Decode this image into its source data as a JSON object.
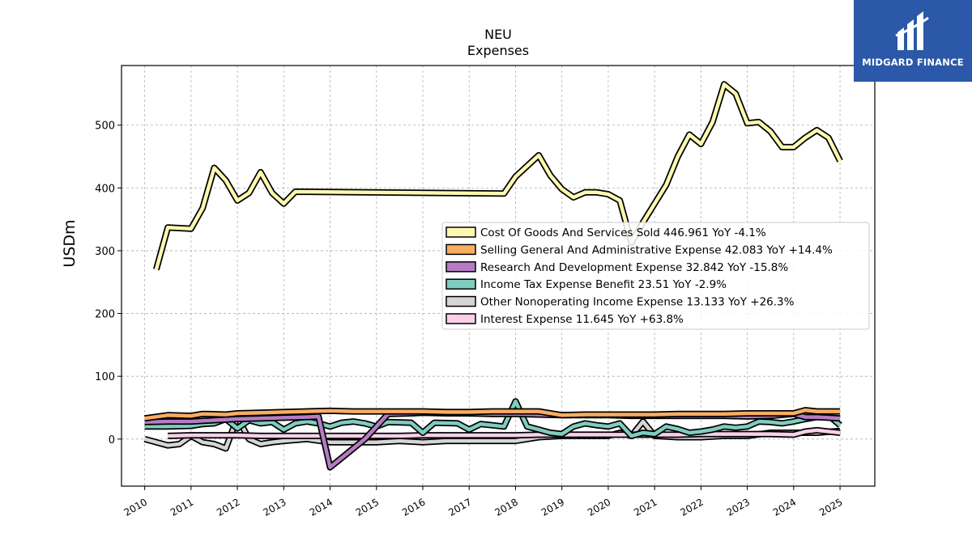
{
  "brand": {
    "name": "MIDGARD FINANCE",
    "background": "#2b58a8"
  },
  "chart_data": {
    "type": "line",
    "title": "NEU",
    "subtitle": "Expenses",
    "xlabel": "",
    "ylabel": "USDm",
    "xlim": [
      2009.5,
      2025.75
    ],
    "ylim": [
      -75,
      595
    ],
    "y_ticks": [
      0,
      100,
      200,
      300,
      400,
      500
    ],
    "x_ticks": [
      "2010",
      "2011",
      "2012",
      "2013",
      "2014",
      "2015",
      "2016",
      "2017",
      "2018",
      "2019",
      "2020",
      "2021",
      "2022",
      "2023",
      "2024",
      "2025"
    ],
    "grid": true,
    "legend_position": "center-right",
    "series": [
      {
        "name": "Cost Of Goods And Services Sold",
        "legend_label": "Cost Of Goods And Services Sold  446.961 YoY -4.1%",
        "color": "#fdf8b0",
        "x": [
          2010.25,
          2010.5,
          2011.0,
          2011.25,
          2011.5,
          2011.75,
          2012.0,
          2012.25,
          2012.5,
          2012.75,
          2013.0,
          2013.25,
          2017.75,
          2018.0,
          2018.25,
          2018.5,
          2018.75,
          2019.0,
          2019.25,
          2019.5,
          2019.75,
          2020.0,
          2020.25,
          2020.5,
          2020.75,
          2021.0,
          2021.25,
          2021.5,
          2021.75,
          2022.0,
          2022.25,
          2022.5,
          2022.75,
          2023.0,
          2023.25,
          2023.5,
          2023.75,
          2024.0,
          2024.25,
          2024.5,
          2024.75,
          2025.0
        ],
        "y": [
          270,
          337,
          335,
          368,
          432,
          412,
          380,
          392,
          425,
          392,
          375,
          394,
          391,
          418,
          435,
          452,
          420,
          398,
          385,
          393,
          393,
          390,
          380,
          313,
          345,
          375,
          405,
          450,
          485,
          470,
          505,
          565,
          550,
          503,
          505,
          490,
          465,
          465,
          480,
          492,
          480,
          443
        ]
      },
      {
        "name": "Selling General And Administrative Expense",
        "legend_label": "Selling General And Administrative Expense  42.083 YoY +14.4%",
        "color": "#f9ad60",
        "x": [
          2010.0,
          2010.5,
          2011.0,
          2011.25,
          2011.75,
          2012.0,
          2012.5,
          2013.0,
          2013.5,
          2014.0,
          2014.5,
          2015.0,
          2015.5,
          2016.0,
          2016.5,
          2017.0,
          2017.5,
          2018.0,
          2018.5,
          2019.0,
          2019.5,
          2020.0,
          2020.5,
          2021.0,
          2021.5,
          2022.0,
          2022.5,
          2023.0,
          2023.5,
          2024.0,
          2024.25,
          2024.5,
          2025.0
        ],
        "y": [
          33,
          38,
          37,
          40,
          39,
          41,
          42,
          43,
          44,
          45,
          44,
          44,
          44,
          44,
          43,
          43,
          44,
          44,
          44,
          38,
          39,
          39,
          39,
          39,
          40,
          40,
          40,
          41,
          41,
          41,
          46,
          44,
          44
        ]
      },
      {
        "name": "Research And Development Expense",
        "legend_label": "Research And Development Expense  32.842 YoY -15.8%",
        "color": "#b57cc4",
        "x": [
          2010.0,
          2010.5,
          2011.0,
          2011.5,
          2012.0,
          2012.5,
          2013.0,
          2013.5,
          2013.75,
          2014.0,
          2014.25,
          2014.5,
          2014.75,
          2015.0,
          2015.25,
          2015.75,
          2016.0,
          2016.5,
          2017.0,
          2017.5,
          2018.0,
          2018.5,
          2019.0,
          2019.5,
          2020.0,
          2020.5,
          2021.0,
          2021.5,
          2022.0,
          2022.5,
          2023.0,
          2023.5,
          2024.0,
          2024.25,
          2024.5,
          2025.0
        ],
        "y": [
          27,
          28,
          28,
          30,
          32,
          33,
          34,
          35,
          36,
          -45,
          -30,
          -15,
          0,
          20,
          40,
          41,
          42,
          41,
          41,
          40,
          40,
          39,
          38,
          38,
          38,
          37,
          37,
          37,
          37,
          37,
          36,
          37,
          40,
          35,
          35,
          33
        ]
      },
      {
        "name": "Income Tax Expense Benefit",
        "legend_label": "Income Tax Expense Benefit  23.51 YoY -2.9%",
        "color": "#7fcdbf",
        "x": [
          2010.0,
          2010.5,
          2011.0,
          2011.25,
          2011.5,
          2011.75,
          2012.0,
          2012.25,
          2012.5,
          2012.75,
          2013.0,
          2013.25,
          2013.5,
          2013.75,
          2014.0,
          2014.25,
          2014.5,
          2014.75,
          2015.0,
          2015.25,
          2015.75,
          2016.0,
          2016.25,
          2016.75,
          2017.0,
          2017.25,
          2017.5,
          2017.75,
          2018.0,
          2018.25,
          2018.5,
          2018.75,
          2019.0,
          2019.25,
          2019.5,
          2019.75,
          2020.0,
          2020.25,
          2020.5,
          2020.75,
          2021.0,
          2021.25,
          2021.5,
          2021.75,
          2022.0,
          2022.25,
          2022.5,
          2022.75,
          2023.0,
          2023.25,
          2023.5,
          2023.75,
          2024.0,
          2024.25,
          2024.5,
          2024.75,
          2025.0
        ],
        "y": [
          20,
          20,
          21,
          24,
          25,
          32,
          17,
          30,
          25,
          27,
          15,
          25,
          28,
          25,
          20,
          26,
          28,
          25,
          20,
          27,
          26,
          10,
          26,
          25,
          15,
          24,
          22,
          20,
          60,
          20,
          15,
          10,
          8,
          20,
          25,
          22,
          20,
          25,
          5,
          10,
          8,
          20,
          16,
          10,
          12,
          15,
          20,
          18,
          20,
          28,
          27,
          25,
          28,
          32,
          35,
          38,
          22
        ]
      },
      {
        "name": "Other Nonoperating Income Expense",
        "legend_label": "Other Nonoperating Income Expense  13.133 YoY +26.3%",
        "color": "#d5d5d5",
        "x": [
          2010.0,
          2010.5,
          2010.75,
          2011.0,
          2011.25,
          2011.5,
          2011.75,
          2012.0,
          2012.25,
          2012.5,
          2012.75,
          2013.0,
          2013.5,
          2014.0,
          2014.5,
          2015.0,
          2015.5,
          2016.0,
          2016.5,
          2017.0,
          2017.5,
          2018.0,
          2018.5,
          2019.0,
          2019.5,
          2020.0,
          2020.25,
          2020.5,
          2020.75,
          2021.0,
          2021.5,
          2022.0,
          2022.5,
          2023.0,
          2023.5,
          2024.0,
          2024.5,
          2025.0
        ],
        "y": [
          0,
          -10,
          -8,
          5,
          -5,
          -8,
          -15,
          35,
          0,
          -8,
          -5,
          -3,
          0,
          -5,
          -5,
          -5,
          -3,
          -5,
          -3,
          -3,
          -3,
          -3,
          3,
          5,
          5,
          5,
          10,
          5,
          28,
          5,
          3,
          3,
          5,
          5,
          10,
          10,
          10,
          13
        ]
      },
      {
        "name": "Interest Expense",
        "legend_label": "Interest Expense  11.645 YoY +63.8%",
        "color": "#fbcfe8",
        "x": [
          2010.5,
          2011.0,
          2011.5,
          2012.0,
          2012.5,
          2013.0,
          2013.5,
          2014.0,
          2014.5,
          2015.0,
          2015.5,
          2016.0,
          2016.5,
          2017.0,
          2017.5,
          2018.0,
          2018.5,
          2019.0,
          2019.5,
          2020.0,
          2020.5,
          2021.0,
          2021.5,
          2022.0,
          2022.5,
          2023.0,
          2023.5,
          2024.0,
          2024.25,
          2024.5,
          2025.0
        ],
        "y": [
          5,
          6,
          6,
          6,
          5,
          5,
          5,
          5,
          5,
          5,
          5,
          6,
          6,
          6,
          6,
          6,
          7,
          7,
          7,
          7,
          7,
          7,
          7,
          8,
          8,
          8,
          8,
          7,
          12,
          14,
          10
        ]
      }
    ]
  }
}
